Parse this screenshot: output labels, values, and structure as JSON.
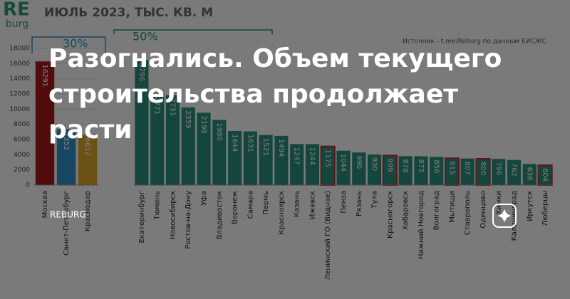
{
  "logo_top": "RE",
  "logo_bottom": "burg",
  "subtitle": "ИЮЛЬ 2023, ТЫС. КВ. М",
  "share_left": "30%",
  "share_right": "50%",
  "source": "Источник - t.me/Reburg по данным ЕИСЖС",
  "headline": [
    "Разогнались. Объем текущего",
    "строительства продолжает",
    "расти"
  ],
  "brand": "REBURG",
  "chart_data": [
    {
      "type": "bar",
      "categories": [
        "Москва",
        "Санкт-Петербург",
        "Краснодар"
      ],
      "values": [
        16291,
        7352,
        6612
      ],
      "colors": [
        "#a3191d",
        "#2f8fc6",
        "#d9a22a"
      ],
      "ylim": [
        0,
        18000
      ],
      "yticks": [
        0,
        2000,
        4000,
        6000,
        8000,
        10000,
        12000,
        14000,
        16000,
        18000
      ]
    },
    {
      "type": "bar",
      "categories": [
        "Екатеринбург",
        "Тюмень",
        "Новосибирск",
        "Ростов-на-Дону",
        "Уфа",
        "Владивосток",
        "Воронеж",
        "Самара",
        "Пермь",
        "Красноярск",
        "Казань",
        "Ижевск",
        "Ленинский ГО (Видное)",
        "Пенза",
        "Рязань",
        "Тула",
        "Красногорск",
        "Хабаровск",
        "Нижний Новгород",
        "Волгоград",
        "Мытищи",
        "Ставрополь",
        "Одинцово",
        "Химки",
        "Калининград",
        "Иркутск",
        "Люберцы"
      ],
      "values": [
        3796,
        2771,
        2731,
        2359,
        2198,
        1980,
        1644,
        1631,
        1521,
        1494,
        1247,
        1244,
        1175,
        1044,
        990,
        930,
        899,
        878,
        875,
        856,
        815,
        807,
        800,
        796,
        762,
        638,
        604
      ],
      "color": "#2a8c7b",
      "edge_colors": [
        null,
        null,
        null,
        null,
        null,
        null,
        null,
        null,
        null,
        null,
        null,
        null,
        "#c8282d",
        null,
        null,
        null,
        "#c8282d",
        null,
        null,
        null,
        "#c8282d",
        null,
        "#c8282d",
        null,
        null,
        null,
        "#c8282d"
      ],
      "ylim": [
        0,
        4000
      ]
    }
  ]
}
